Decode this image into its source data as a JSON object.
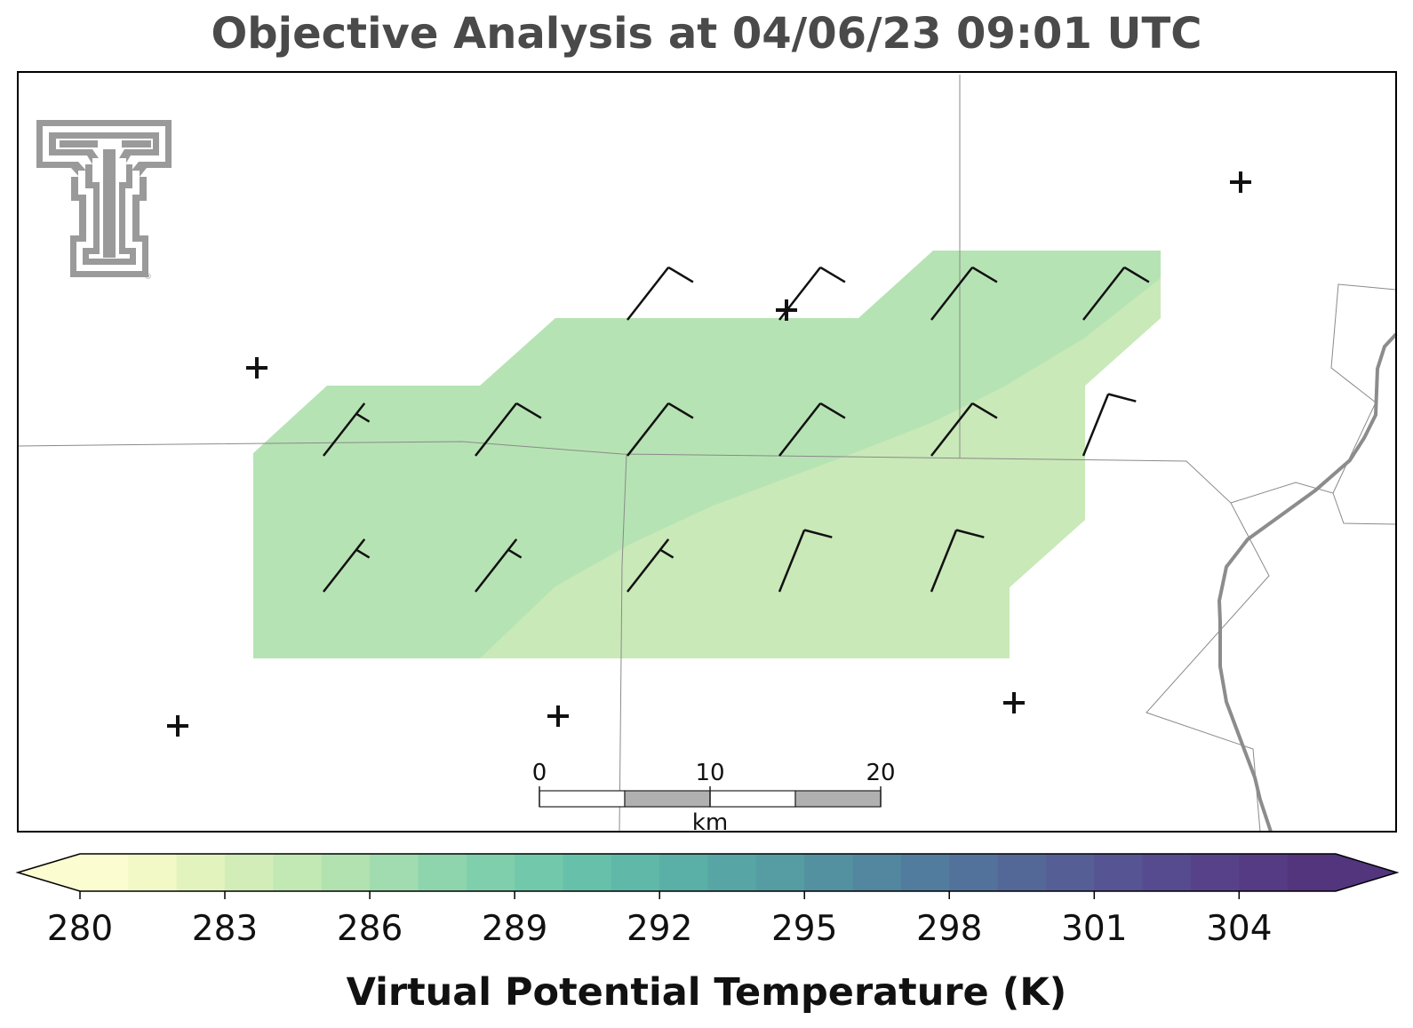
{
  "title": "Objective Analysis at 04/06/23 09:01 UTC",
  "logo": {
    "name": "texas-tech-double-t-logo",
    "mark": "®"
  },
  "map": {
    "fill_colors": {
      "darker": "#b6e3b3",
      "lighter": "#c9e9b8"
    },
    "barb_color": "#111111",
    "station_marker": "plus",
    "wind_barbs": [
      {
        "row": 0,
        "col": 2,
        "direction": "NE",
        "barbs": [
          "full"
        ]
      },
      {
        "row": 0,
        "col": 3,
        "direction": "NE",
        "barbs": [
          "full"
        ]
      },
      {
        "row": 0,
        "col": 4,
        "direction": "NE",
        "barbs": [
          "full"
        ]
      },
      {
        "row": 0,
        "col": 5,
        "direction": "NE",
        "barbs": [
          "full"
        ]
      },
      {
        "row": 1,
        "col": 0,
        "direction": "NE",
        "barbs": [
          "half"
        ]
      },
      {
        "row": 1,
        "col": 1,
        "direction": "NE",
        "barbs": [
          "full"
        ]
      },
      {
        "row": 1,
        "col": 2,
        "direction": "NE",
        "barbs": [
          "full"
        ]
      },
      {
        "row": 1,
        "col": 3,
        "direction": "NE",
        "barbs": [
          "full"
        ]
      },
      {
        "row": 1,
        "col": 4,
        "direction": "NE",
        "barbs": [
          "full"
        ]
      },
      {
        "row": 1,
        "col": 5,
        "direction": "NNE",
        "barbs": [
          "full"
        ]
      },
      {
        "row": 2,
        "col": 0,
        "direction": "NE",
        "barbs": [
          "half"
        ]
      },
      {
        "row": 2,
        "col": 1,
        "direction": "NE",
        "barbs": [
          "half"
        ]
      },
      {
        "row": 2,
        "col": 2,
        "direction": "NE",
        "barbs": [
          "half"
        ]
      },
      {
        "row": 2,
        "col": 3,
        "direction": "NNE",
        "barbs": [
          "full"
        ]
      },
      {
        "row": 2,
        "col": 4,
        "direction": "NNE",
        "barbs": [
          "full"
        ]
      }
    ],
    "scale_bar": {
      "labels": [
        "0",
        "10",
        "20"
      ],
      "unit": "km"
    }
  },
  "colorbar": {
    "title": "Virtual Potential Temperature (K)",
    "ticks": [
      "280",
      "283",
      "286",
      "289",
      "292",
      "295",
      "298",
      "301",
      "304"
    ],
    "min": 280,
    "max": 306,
    "colors": [
      "#fbfcd0",
      "#f3f9c6",
      "#e2f3bd",
      "#d2edb8",
      "#c2e8b3",
      "#b1e2b0",
      "#a0dcaf",
      "#8ed5ad",
      "#7fcfac",
      "#72c8ab",
      "#67c0aa",
      "#60b8a8",
      "#5aafa7",
      "#57a6a5",
      "#559ca3",
      "#5391a1",
      "#52879f",
      "#527c9d",
      "#53729b",
      "#546898",
      "#565e96",
      "#575493",
      "#574b8f",
      "#57428a",
      "#553b84",
      "#52357d"
    ],
    "extend": "both"
  }
}
